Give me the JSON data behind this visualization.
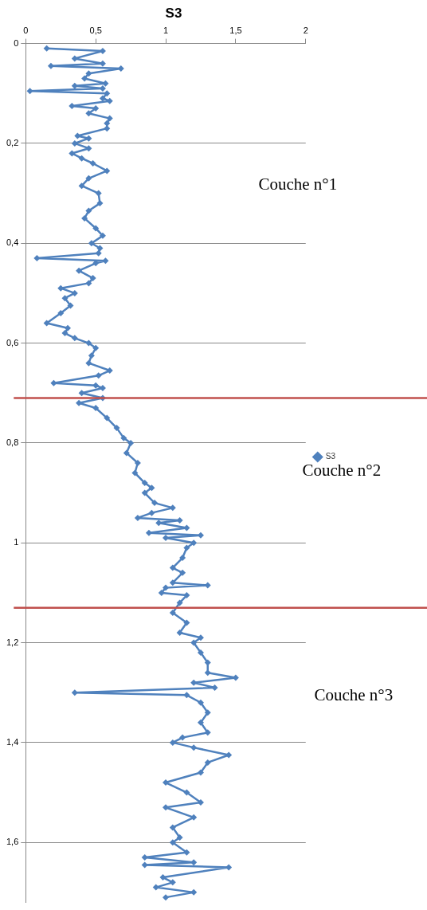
{
  "chart_data": {
    "type": "line",
    "title": "S3",
    "marker": "diamond",
    "grid": "y",
    "legend": "right",
    "xlim": [
      0,
      2
    ],
    "xticks": [
      0,
      {
        "value": 0.5,
        "label": "0,5"
      },
      1,
      {
        "value": 1.5,
        "label": "1,5"
      },
      2
    ],
    "ylim": [
      1.72,
      0
    ],
    "yticks": [
      0,
      {
        "value": 0.2,
        "label": "0,2"
      },
      {
        "value": 0.4,
        "label": "0,4"
      },
      {
        "value": 0.6,
        "label": "0,6"
      },
      {
        "value": 0.8,
        "label": "0,8"
      },
      1,
      {
        "value": 1.2,
        "label": "1,2"
      },
      {
        "value": 1.4,
        "label": "1,4"
      },
      {
        "value": 1.6,
        "label": "1,6"
      }
    ],
    "ref_lines": [
      {
        "axis": "y",
        "value": 0.71,
        "color": "#c0504d"
      },
      {
        "axis": "y",
        "value": 1.13,
        "color": "#c0504d"
      }
    ],
    "annotations": [
      "Couche n°1",
      "Couche n°2",
      "Couche n°3"
    ],
    "series": [
      {
        "name": "S3",
        "color": "#4f81bd",
        "x": [
          0.15,
          0.55,
          0.35,
          0.55,
          0.18,
          0.68,
          0.45,
          0.42,
          0.57,
          0.35,
          0.55,
          0.03,
          0.58,
          0.55,
          0.6,
          0.33,
          0.5,
          0.45,
          0.6,
          0.58,
          0.58,
          0.37,
          0.45,
          0.35,
          0.45,
          0.33,
          0.4,
          0.48,
          0.58,
          0.45,
          0.4,
          0.52,
          0.53,
          0.45,
          0.42,
          0.5,
          0.55,
          0.47,
          0.53,
          0.52,
          0.08,
          0.57,
          0.5,
          0.38,
          0.48,
          0.45,
          0.25,
          0.35,
          0.28,
          0.32,
          0.25,
          0.15,
          0.3,
          0.28,
          0.35,
          0.45,
          0.5,
          0.47,
          0.45,
          0.6,
          0.52,
          0.2,
          0.5,
          0.55,
          0.4,
          0.55,
          0.38,
          0.5,
          0.58,
          0.65,
          0.7,
          0.75,
          0.72,
          0.8,
          0.78,
          0.85,
          0.9,
          0.85,
          0.92,
          1.05,
          0.9,
          0.8,
          1.1,
          0.95,
          1.15,
          0.88,
          1.25,
          1.0,
          1.2,
          1.15,
          1.12,
          1.05,
          1.12,
          1.05,
          1.3,
          1.0,
          0.97,
          1.15,
          1.1,
          1.05,
          1.15,
          1.1,
          1.25,
          1.2,
          1.25,
          1.3,
          1.3,
          1.5,
          1.2,
          1.35,
          0.35,
          1.15,
          1.25,
          1.3,
          1.25,
          1.3,
          1.12,
          1.05,
          1.2,
          1.45,
          1.3,
          1.25,
          1.0,
          1.15,
          1.25,
          1.0,
          1.2,
          1.05,
          1.1,
          1.05,
          1.15,
          0.85,
          1.2,
          0.85,
          1.45,
          0.98,
          1.05,
          0.93,
          1.2,
          1.0
        ],
        "values": [
          0.01,
          0.015,
          0.03,
          0.04,
          0.045,
          0.05,
          0.06,
          0.07,
          0.08,
          0.085,
          0.09,
          0.095,
          0.1,
          0.11,
          0.115,
          0.125,
          0.13,
          0.14,
          0.15,
          0.16,
          0.17,
          0.185,
          0.19,
          0.2,
          0.21,
          0.22,
          0.23,
          0.24,
          0.255,
          0.27,
          0.285,
          0.3,
          0.32,
          0.335,
          0.35,
          0.37,
          0.385,
          0.4,
          0.41,
          0.42,
          0.43,
          0.435,
          0.44,
          0.455,
          0.47,
          0.48,
          0.49,
          0.5,
          0.51,
          0.525,
          0.54,
          0.56,
          0.57,
          0.58,
          0.59,
          0.6,
          0.61,
          0.625,
          0.64,
          0.655,
          0.665,
          0.68,
          0.685,
          0.69,
          0.7,
          0.71,
          0.72,
          0.73,
          0.75,
          0.77,
          0.79,
          0.8,
          0.82,
          0.84,
          0.86,
          0.88,
          0.89,
          0.9,
          0.92,
          0.93,
          0.94,
          0.95,
          0.955,
          0.96,
          0.97,
          0.98,
          0.985,
          0.99,
          1.0,
          1.01,
          1.03,
          1.05,
          1.06,
          1.08,
          1.085,
          1.09,
          1.1,
          1.105,
          1.12,
          1.14,
          1.16,
          1.18,
          1.19,
          1.2,
          1.22,
          1.24,
          1.26,
          1.27,
          1.28,
          1.29,
          1.3,
          1.305,
          1.32,
          1.34,
          1.36,
          1.38,
          1.39,
          1.4,
          1.41,
          1.425,
          1.44,
          1.46,
          1.48,
          1.5,
          1.52,
          1.53,
          1.55,
          1.57,
          1.59,
          1.6,
          1.62,
          1.63,
          1.64,
          1.645,
          1.65,
          1.67,
          1.68,
          1.69,
          1.7,
          1.71
        ]
      }
    ]
  }
}
